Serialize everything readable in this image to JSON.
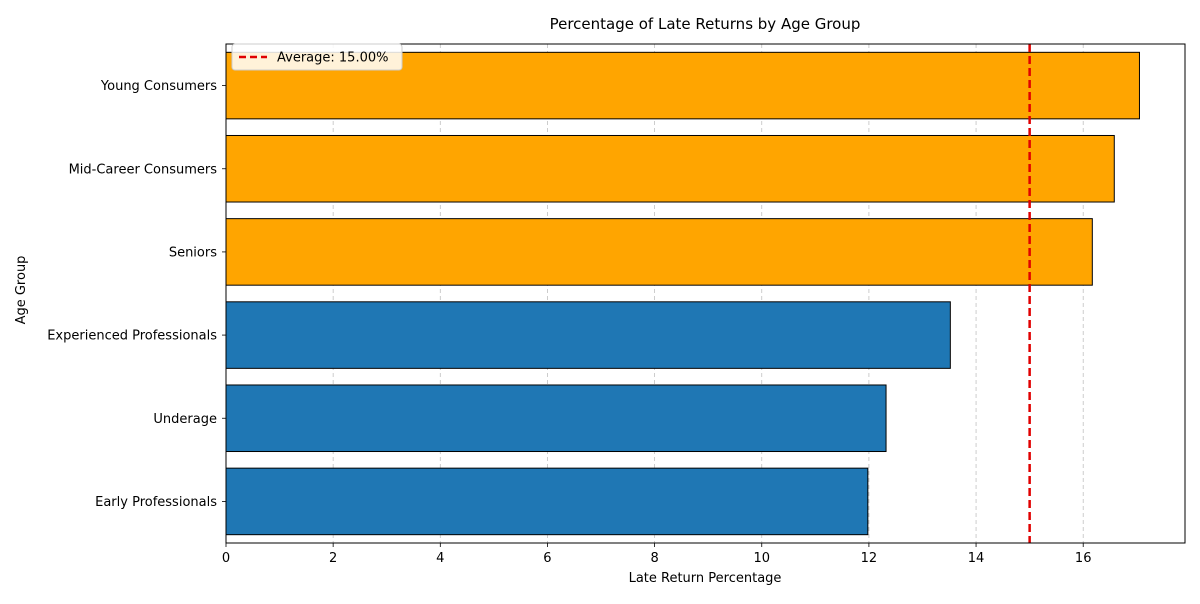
{
  "chart_data": {
    "type": "bar",
    "orientation": "horizontal",
    "title": "Percentage of Late Returns by Age Group",
    "xlabel": "Late Return Percentage",
    "ylabel": "Age Group",
    "xlim": [
      0,
      17.9
    ],
    "xticks": [
      0,
      2,
      4,
      6,
      8,
      10,
      12,
      14,
      16
    ],
    "grid": "x-axis dashed",
    "categories": [
      "Young Consumers",
      "Mid-Career Consumers",
      "Seniors",
      "Experienced Professionals",
      "Underage",
      "Early Professionals"
    ],
    "values": [
      17.05,
      16.58,
      16.17,
      13.52,
      12.32,
      11.98
    ],
    "bar_colors": [
      "#ffa500",
      "#ffa500",
      "#ffa500",
      "#1f77b4",
      "#1f77b4",
      "#1f77b4"
    ],
    "reference_line": {
      "value": 15.0,
      "label": "Average: 15.00%",
      "color": "#e00000",
      "style": "dashed"
    },
    "legend": {
      "placement": "top-left",
      "entries": [
        "Average: 15.00%"
      ]
    }
  }
}
